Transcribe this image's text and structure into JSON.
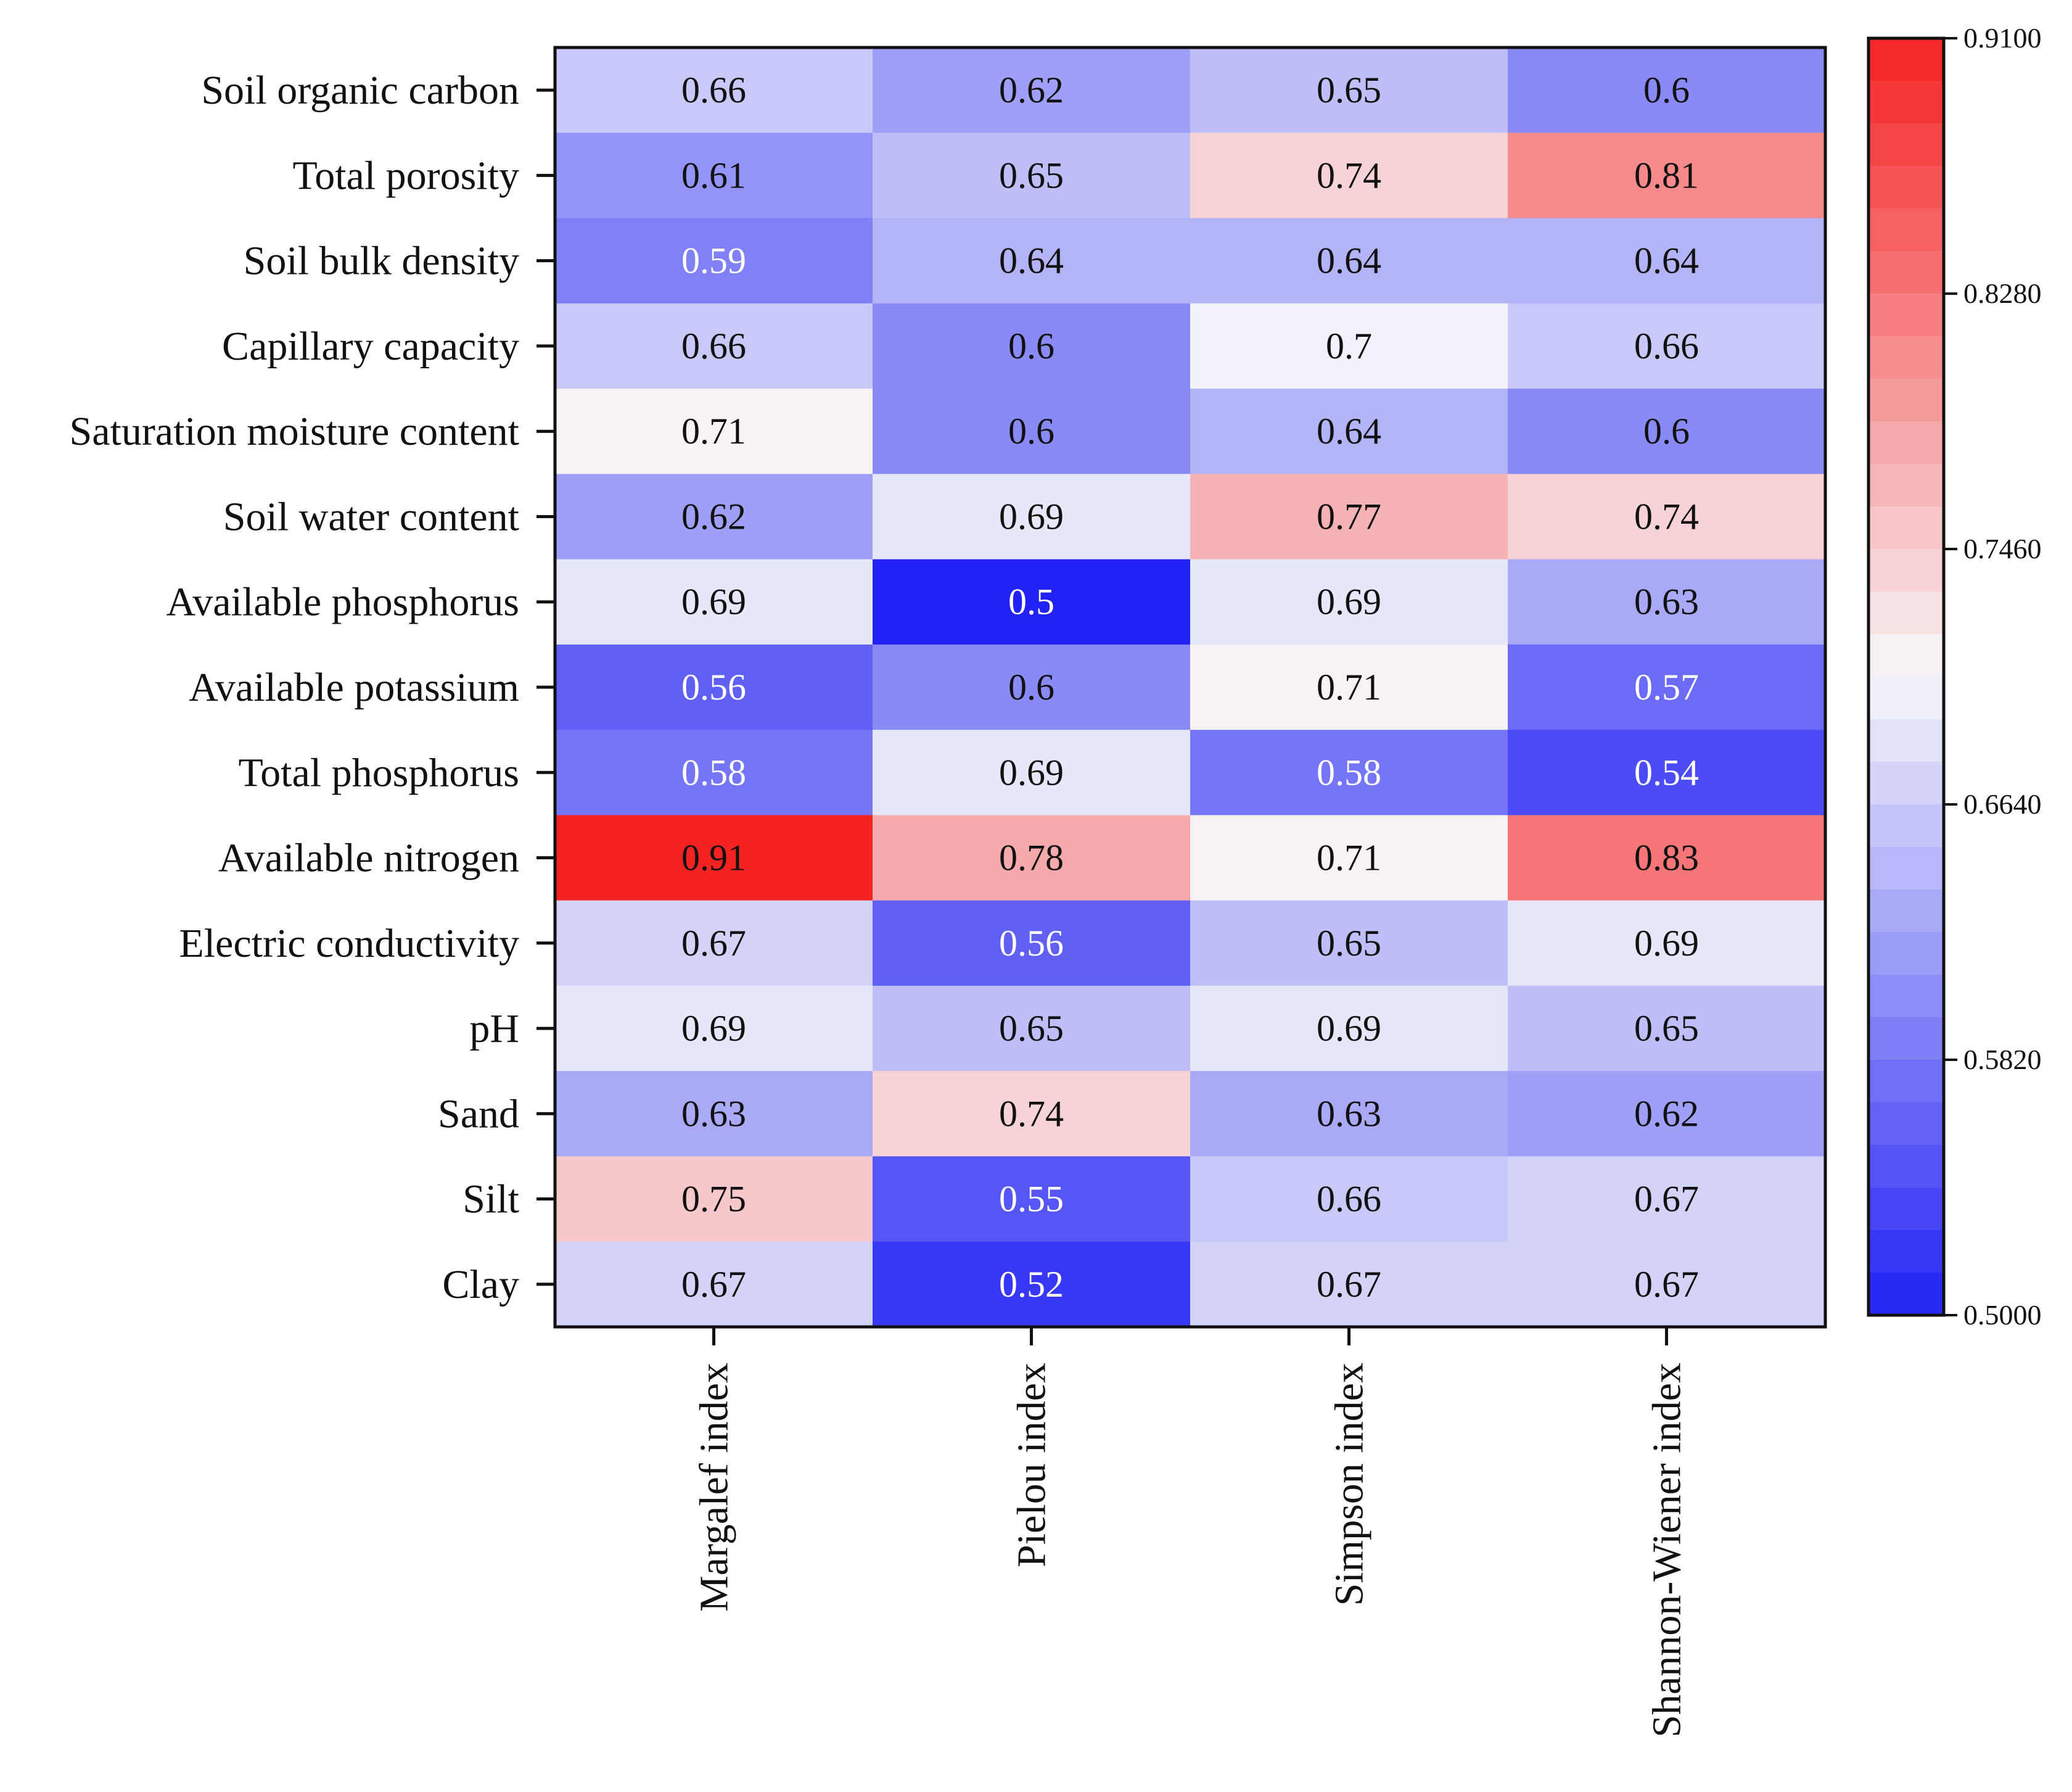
{
  "chart_data": {
    "type": "heatmap",
    "title": "",
    "xlabel": "",
    "ylabel": "",
    "rows": [
      "Soil organic carbon",
      "Total porosity",
      "Soil bulk density",
      "Capillary capacity",
      "Saturation moisture content",
      "Soil water content",
      "Available phosphorus",
      "Available potassium",
      "Total phosphorus",
      "Available nitrogen",
      "Electric conductivity",
      "pH",
      "Sand",
      "Silt",
      "Clay"
    ],
    "columns": [
      "Margalef index",
      "Pielou index",
      "Simpson index",
      "Shannon-Wiener index"
    ],
    "values": [
      [
        0.66,
        0.62,
        0.65,
        0.6
      ],
      [
        0.61,
        0.65,
        0.74,
        0.81
      ],
      [
        0.59,
        0.64,
        0.64,
        0.64
      ],
      [
        0.66,
        0.6,
        0.7,
        0.66
      ],
      [
        0.71,
        0.6,
        0.64,
        0.6
      ],
      [
        0.62,
        0.69,
        0.77,
        0.74
      ],
      [
        0.69,
        0.5,
        0.69,
        0.63
      ],
      [
        0.56,
        0.6,
        0.71,
        0.57
      ],
      [
        0.58,
        0.69,
        0.58,
        0.54
      ],
      [
        0.91,
        0.78,
        0.71,
        0.83
      ],
      [
        0.67,
        0.56,
        0.65,
        0.69
      ],
      [
        0.69,
        0.65,
        0.69,
        0.65
      ],
      [
        0.63,
        0.74,
        0.63,
        0.62
      ],
      [
        0.75,
        0.55,
        0.66,
        0.67
      ],
      [
        0.67,
        0.52,
        0.67,
        0.67
      ]
    ],
    "cell_labels": [
      [
        "0.66",
        "0.62",
        "0.65",
        "0.6"
      ],
      [
        "0.61",
        "0.65",
        "0.74",
        "0.81"
      ],
      [
        "0.59",
        "0.64",
        "0.64",
        "0.64"
      ],
      [
        "0.66",
        "0.6",
        "0.7",
        "0.66"
      ],
      [
        "0.71",
        "0.6",
        "0.64",
        "0.6"
      ],
      [
        "0.62",
        "0.69",
        "0.77",
        "0.74"
      ],
      [
        "0.69",
        "0.5",
        "0.69",
        "0.63"
      ],
      [
        "0.56",
        "0.6",
        "0.71",
        "0.57"
      ],
      [
        "0.58",
        "0.69",
        "0.58",
        "0.54"
      ],
      [
        "0.91",
        "0.78",
        "0.71",
        "0.83"
      ],
      [
        "0.67",
        "0.56",
        "0.65",
        "0.69"
      ],
      [
        "0.69",
        "0.65",
        "0.69",
        "0.65"
      ],
      [
        "0.63",
        "0.74",
        "0.63",
        "0.62"
      ],
      [
        "0.75",
        "0.55",
        "0.66",
        "0.67"
      ],
      [
        "0.67",
        "0.52",
        "0.67",
        "0.67"
      ]
    ],
    "colorbar": {
      "min": 0.5,
      "max": 0.91,
      "ticks": [
        0.91,
        0.828,
        0.746,
        0.664,
        0.582,
        0.5
      ],
      "tick_labels": [
        "0.9100",
        "0.8280",
        "0.7460",
        "0.6640",
        "0.5820",
        "0.5000"
      ],
      "low_color": "#2222f5",
      "mid_color": "#f7f7fa",
      "high_color": "#f52222",
      "mid_value": 0.705
    }
  }
}
